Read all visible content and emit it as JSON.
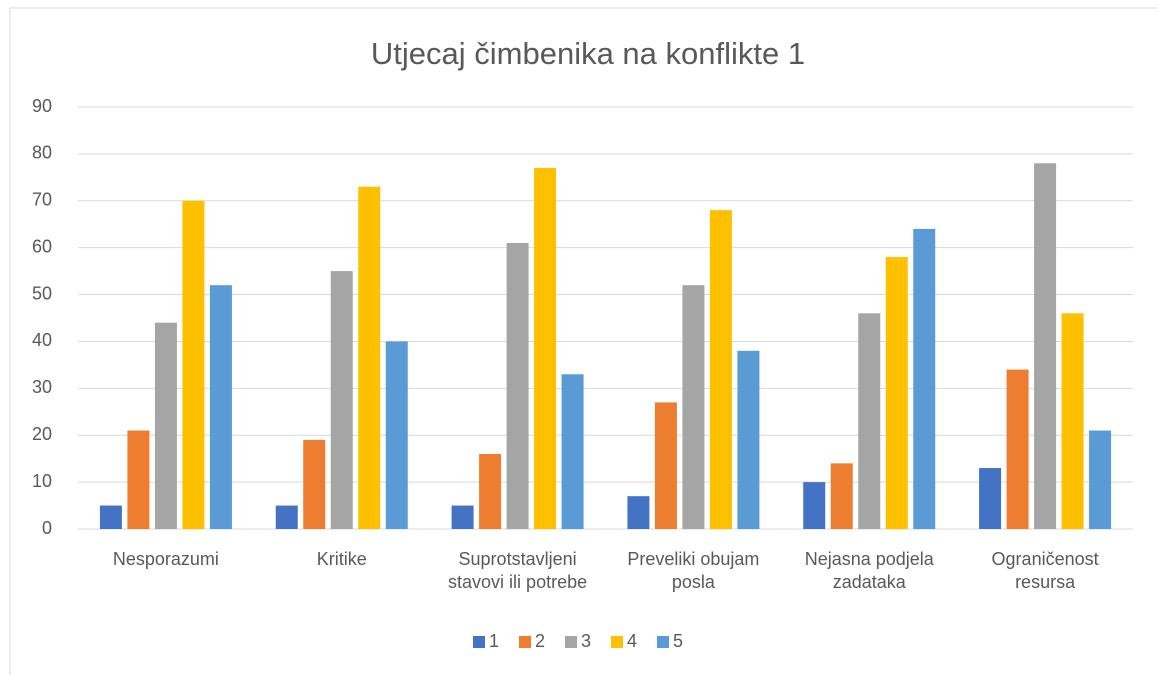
{
  "chart_data": {
    "type": "bar",
    "title": "Utjecaj čimbenika na konflikte 1",
    "categories": [
      "Nesporazumi",
      "Kritike",
      "Suprotstavljeni stavovi ili potrebe",
      "Preveliki obujam posla",
      "Nejasna podjela zadataka",
      "Ograničenost resursa"
    ],
    "series": [
      {
        "name": "1",
        "color": "#4472c4",
        "values": [
          5,
          5,
          5,
          7,
          10,
          13
        ]
      },
      {
        "name": "2",
        "color": "#ed7d31",
        "values": [
          21,
          19,
          16,
          27,
          14,
          34
        ]
      },
      {
        "name": "3",
        "color": "#a5a5a5",
        "values": [
          44,
          55,
          61,
          52,
          46,
          78
        ]
      },
      {
        "name": "4",
        "color": "#ffc000",
        "values": [
          70,
          73,
          77,
          68,
          58,
          46
        ]
      },
      {
        "name": "5",
        "color": "#5b9bd5",
        "values": [
          52,
          40,
          33,
          38,
          64,
          21
        ]
      }
    ],
    "ylim": [
      0,
      90
    ],
    "yticks": [
      0,
      10,
      20,
      30,
      40,
      50,
      60,
      70,
      80,
      90
    ],
    "grid": true,
    "legend": "bottom"
  }
}
